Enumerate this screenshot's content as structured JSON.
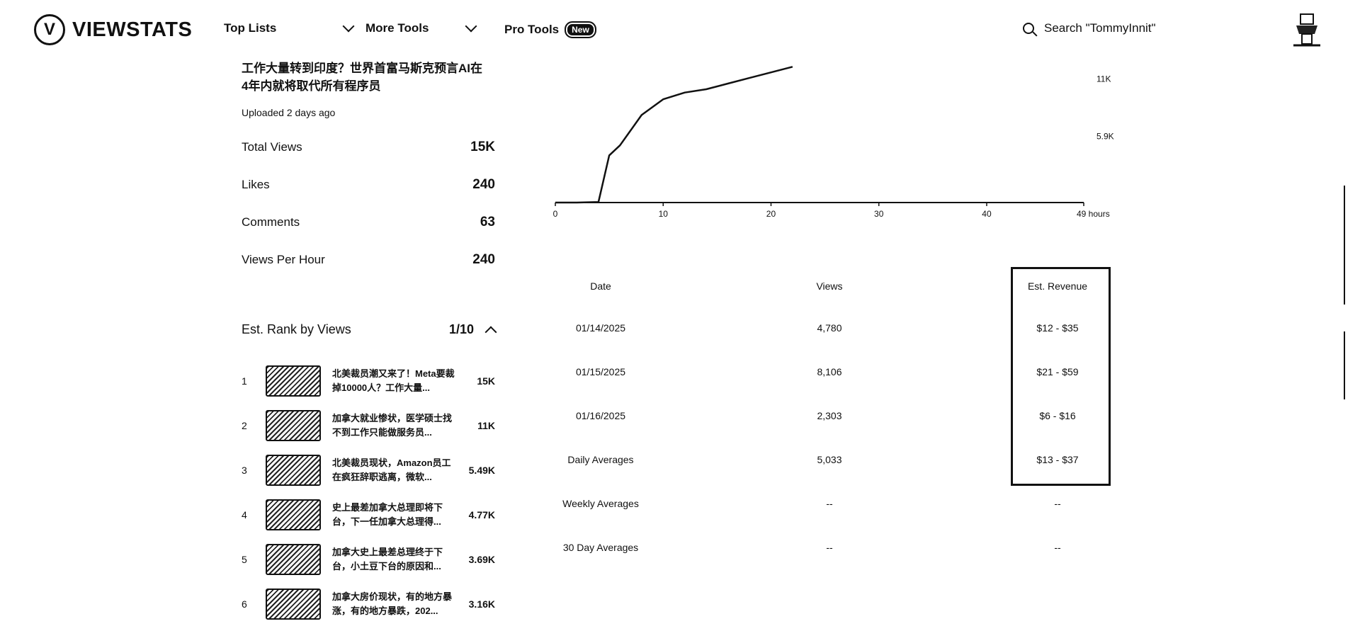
{
  "header": {
    "logo_text": "VIEWSTATS",
    "nav": [
      {
        "label": "Top Lists"
      },
      {
        "label": "More Tools"
      },
      {
        "label": "Pro Tools",
        "badge": "New"
      }
    ],
    "search_placeholder": "Search \"TommyInnit\""
  },
  "video": {
    "title": "工作大量转到印度？世界首富马斯克预言AI在4年内就将取代所有程序员",
    "uploaded": "Uploaded 2 days ago",
    "stats": [
      {
        "label": "Total Views",
        "value": "15K"
      },
      {
        "label": "Likes",
        "value": "240"
      },
      {
        "label": "Comments",
        "value": "63"
      },
      {
        "label": "Views Per Hour",
        "value": "240"
      }
    ]
  },
  "rank": {
    "title": "Est. Rank by Views",
    "position": "1/10",
    "items": [
      {
        "num": "1",
        "title": "北美裁员潮又来了！Meta要裁掉10000人？工作大量...",
        "views": "15K"
      },
      {
        "num": "2",
        "title": "加拿大就业惨状，医学硕士找不到工作只能做服务员...",
        "views": "11K"
      },
      {
        "num": "3",
        "title": "北美裁员现状，Amazon员工在疯狂辞职逃离，微软...",
        "views": "5.49K"
      },
      {
        "num": "4",
        "title": "史上最差加拿大总理即将下台，下一任加拿大总理得...",
        "views": "4.77K"
      },
      {
        "num": "5",
        "title": "加拿大史上最差总理终于下台，小土豆下台的原因和...",
        "views": "3.69K"
      },
      {
        "num": "6",
        "title": "加拿大房价现状，有的地方暴涨，有的地方暴跌，202...",
        "views": "3.16K"
      }
    ]
  },
  "chart_data": {
    "type": "line",
    "x_tick_labels": [
      "0",
      "10",
      "20",
      "30",
      "40",
      "49 hours"
    ],
    "y_tick_labels": [
      "11K",
      "5.9K"
    ],
    "x": [
      0,
      2,
      4,
      5,
      6,
      8,
      10,
      12,
      14,
      16,
      18,
      20,
      22
    ],
    "y": [
      0,
      0,
      50,
      4200,
      5100,
      7800,
      9200,
      9800,
      10100,
      10600,
      11100,
      11600,
      12100
    ],
    "xlim": [
      0,
      49
    ],
    "ylim": [
      0,
      13000
    ]
  },
  "table": {
    "headers": [
      "Date",
      "Views",
      "Est. Revenue"
    ],
    "rows": [
      [
        "01/14/2025",
        "4,780",
        "$12 - $35"
      ],
      [
        "01/15/2025",
        "8,106",
        "$21 - $59"
      ],
      [
        "01/16/2025",
        "2,303",
        "$6 - $16"
      ],
      [
        "Daily Averages",
        "5,033",
        "$13 - $37"
      ],
      [
        "Weekly Averages",
        "--",
        "--"
      ],
      [
        "30 Day Averages",
        "--",
        "--"
      ]
    ]
  }
}
